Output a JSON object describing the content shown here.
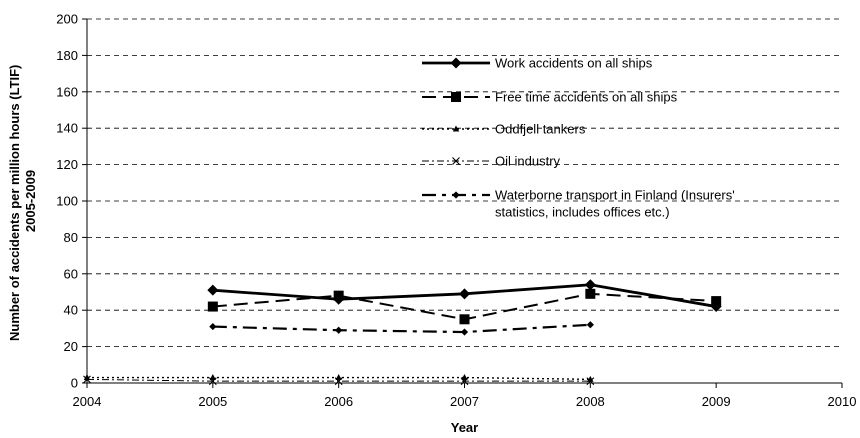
{
  "chart_data": {
    "type": "line",
    "xlabel": "Year",
    "ylabel": [
      "Number of accidents per million hours (LTIF)",
      "2005-2009"
    ],
    "xlim": [
      2004,
      2010
    ],
    "ylim": [
      0,
      200
    ],
    "x_ticks": [
      2004,
      2005,
      2006,
      2007,
      2008,
      2009,
      2010
    ],
    "y_ticks": [
      0,
      20,
      40,
      60,
      80,
      100,
      120,
      140,
      160,
      180,
      200
    ],
    "grid": "horizontal dashed",
    "legend_position": "top-center",
    "series": [
      {
        "name": "Work accidents on all ships",
        "marker": "diamond",
        "line_style": "solid",
        "points": [
          [
            2005,
            51
          ],
          [
            2006,
            46
          ],
          [
            2007,
            49
          ],
          [
            2008,
            54
          ],
          [
            2009,
            42
          ]
        ]
      },
      {
        "name": "Free time accidents on all ships",
        "marker": "square",
        "line_style": "long-dash",
        "points": [
          [
            2005,
            42
          ],
          [
            2006,
            48
          ],
          [
            2007,
            35
          ],
          [
            2008,
            49
          ],
          [
            2009,
            45
          ]
        ]
      },
      {
        "name": "Oddfjell tankers",
        "marker": "triangle",
        "line_style": "dotted",
        "points": [
          [
            2004,
            3
          ],
          [
            2005,
            3
          ],
          [
            2006,
            3
          ],
          [
            2007,
            3
          ],
          [
            2008,
            2
          ]
        ]
      },
      {
        "name": "Oil industry",
        "marker": "x",
        "line_style": "dash-dot",
        "points": [
          [
            2004,
            2
          ],
          [
            2005,
            1
          ],
          [
            2006,
            1
          ],
          [
            2007,
            1
          ],
          [
            2008,
            1
          ]
        ]
      },
      {
        "name": "Waterborne transport in Finland (Insurers' statistics, includes offices etc.)",
        "name_lines": [
          "Waterborne transport in Finland (Insurers'",
          "statistics, includes offices etc.)"
        ],
        "marker": "diamond",
        "marker_size": "small",
        "line_style": "dash-dot-heavy",
        "points": [
          [
            2005,
            31
          ],
          [
            2006,
            29
          ],
          [
            2007,
            28
          ],
          [
            2008,
            32
          ]
        ]
      }
    ]
  }
}
